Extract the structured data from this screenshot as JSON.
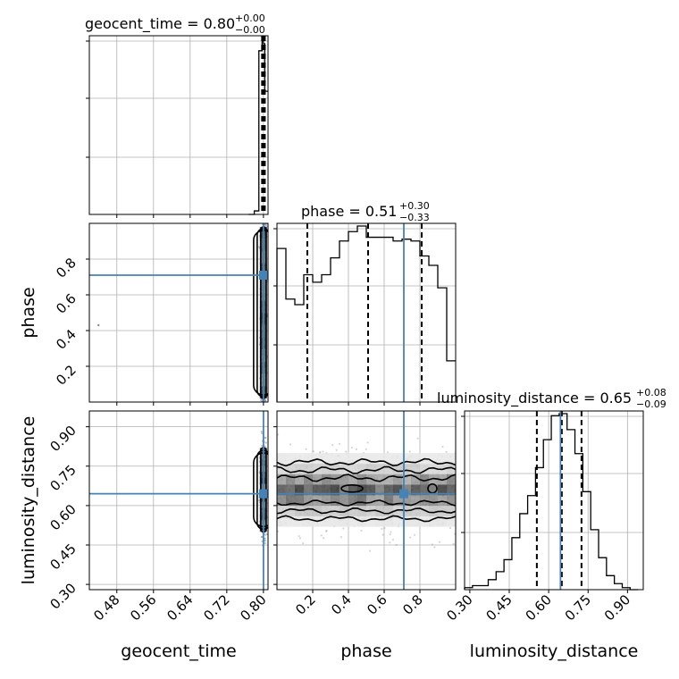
{
  "chart_data": {
    "type": "corner",
    "parameters": [
      "geocent_time",
      "phase",
      "luminosity_distance"
    ],
    "titles": [
      {
        "param": "geocent_time",
        "median": "0.80",
        "plus": "+0.00",
        "minus": "−0.00"
      },
      {
        "param": "phase",
        "median": "0.51",
        "plus": "+0.30",
        "minus": "−0.33"
      },
      {
        "param": "luminosity_distance",
        "median": "0.65",
        "plus": "+0.08",
        "minus": "−0.09"
      }
    ],
    "axis_labels": {
      "x": [
        "geocent_time",
        "phase",
        "luminosity_distance"
      ],
      "y": [
        "phase",
        "luminosity_distance"
      ]
    },
    "ranges": {
      "geocent_time": [
        0.42,
        0.81
      ],
      "phase": [
        0.0,
        1.0
      ],
      "luminosity_distance": [
        0.28,
        0.96
      ]
    },
    "ticks": {
      "geocent_time": [
        "0.48",
        "0.56",
        "0.64",
        "0.72",
        "0.80"
      ],
      "phase_x": [
        "0.2",
        "0.4",
        "0.6",
        "0.8"
      ],
      "phase_y": [
        "0.2",
        "0.4",
        "0.6",
        "0.8"
      ],
      "luminosity_distance_x": [
        "0.30",
        "0.45",
        "0.60",
        "0.75",
        "0.90"
      ],
      "luminosity_distance_y": [
        "0.30",
        "0.45",
        "0.60",
        "0.75",
        "0.90"
      ]
    },
    "truths": {
      "geocent_time": 0.8,
      "phase": 0.71,
      "luminosity_distance": 0.645
    },
    "quantiles": {
      "geocent_time": [
        0.797,
        0.8,
        0.803
      ],
      "phase": [
        0.17,
        0.51,
        0.81
      ],
      "luminosity_distance": [
        0.555,
        0.65,
        0.725
      ]
    },
    "histograms": {
      "geocent_time": {
        "bins": [
          0.7675,
          0.78,
          0.79,
          0.797,
          0.8,
          0.803,
          0.81
        ],
        "counts": [
          0.0,
          0.02,
          0.93,
          1.0,
          0.97,
          0.7
        ]
      },
      "phase": {
        "bins": [
          0.0,
          0.05,
          0.1,
          0.15,
          0.2,
          0.25,
          0.3,
          0.35,
          0.4,
          0.45,
          0.5,
          0.55,
          0.6,
          0.65,
          0.7,
          0.75,
          0.8,
          0.85,
          0.9,
          0.95,
          1.0
        ],
        "counts": [
          0.82,
          0.55,
          0.52,
          0.68,
          0.64,
          0.68,
          0.77,
          0.86,
          0.91,
          0.94,
          0.88,
          0.88,
          0.88,
          0.86,
          0.87,
          0.86,
          0.78,
          0.73,
          0.61,
          0.22
        ]
      },
      "luminosity_distance": {
        "bins": [
          0.28,
          0.31,
          0.34,
          0.37,
          0.4,
          0.43,
          0.46,
          0.49,
          0.52,
          0.55,
          0.58,
          0.61,
          0.64,
          0.67,
          0.7,
          0.73,
          0.76,
          0.79,
          0.82,
          0.85,
          0.88,
          0.91,
          0.94
        ],
        "counts": [
          0.01,
          0.02,
          0.02,
          0.05,
          0.09,
          0.15,
          0.26,
          0.38,
          0.47,
          0.61,
          0.75,
          0.87,
          0.88,
          0.8,
          0.68,
          0.49,
          0.3,
          0.16,
          0.07,
          0.03,
          0.01,
          0.0
        ]
      }
    },
    "grid": true
  }
}
